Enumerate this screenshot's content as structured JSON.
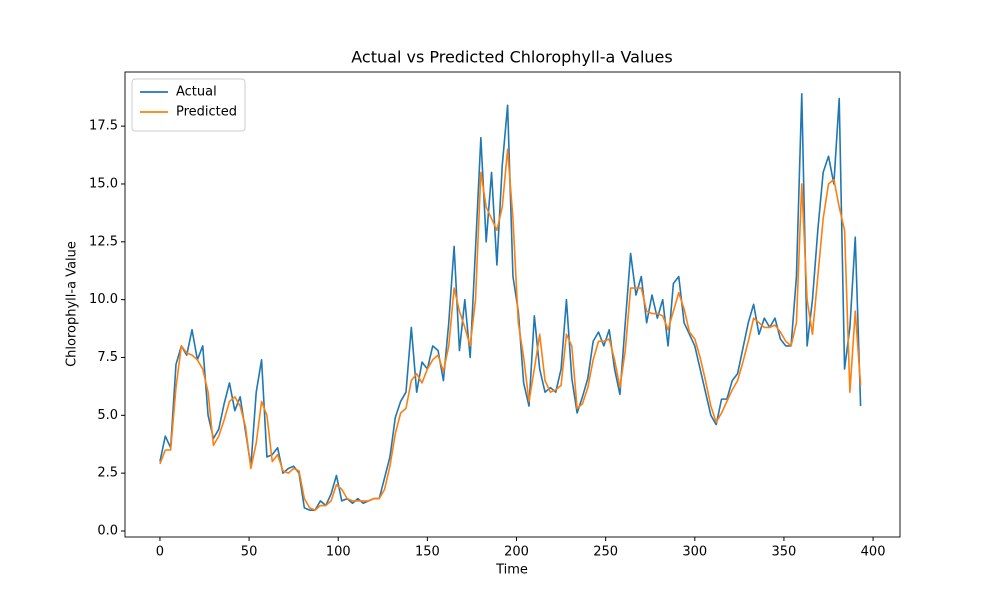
{
  "chart_data": {
    "type": "line",
    "title": "Actual vs Predicted Chlorophyll-a Values",
    "x_label": "Time",
    "y_label": "Chlorophyll-a Value",
    "x": [
      0,
      3,
      6,
      9,
      12,
      15,
      18,
      21,
      24,
      27,
      30,
      33,
      36,
      39,
      42,
      45,
      48,
      51,
      54,
      57,
      60,
      63,
      66,
      69,
      72,
      75,
      78,
      81,
      84,
      87,
      90,
      93,
      96,
      99,
      102,
      105,
      108,
      111,
      114,
      117,
      120,
      123,
      126,
      129,
      132,
      135,
      138,
      141,
      144,
      147,
      150,
      153,
      156,
      159,
      162,
      165,
      168,
      171,
      174,
      177,
      180,
      183,
      186,
      189,
      192,
      195,
      198,
      201,
      204,
      207,
      210,
      213,
      216,
      219,
      222,
      225,
      228,
      231,
      234,
      237,
      240,
      243,
      246,
      249,
      252,
      255,
      258,
      261,
      264,
      267,
      270,
      273,
      276,
      279,
      282,
      285,
      288,
      291,
      294,
      297,
      300,
      303,
      306,
      309,
      312,
      315,
      318,
      321,
      324,
      327,
      330,
      333,
      336,
      339,
      342,
      345,
      348,
      351,
      354,
      357,
      360,
      363,
      366,
      369,
      372,
      375,
      378,
      381,
      384,
      387,
      390,
      393
    ],
    "series": [
      {
        "name": "Actual",
        "color": "#1f77b4",
        "values": [
          3.0,
          4.1,
          3.6,
          7.2,
          8.0,
          7.6,
          8.7,
          7.4,
          8.0,
          5.0,
          4.0,
          4.4,
          5.5,
          6.4,
          5.2,
          5.8,
          4.3,
          2.8,
          6.0,
          7.4,
          3.2,
          3.3,
          3.6,
          2.5,
          2.7,
          2.8,
          2.5,
          1.0,
          0.9,
          0.9,
          1.3,
          1.1,
          1.6,
          2.4,
          1.3,
          1.4,
          1.2,
          1.4,
          1.2,
          1.3,
          1.4,
          1.4,
          2.3,
          3.2,
          4.9,
          5.6,
          6.0,
          8.8,
          6.0,
          7.3,
          7.0,
          8.0,
          7.8,
          6.5,
          9.0,
          12.3,
          7.8,
          10.0,
          7.5,
          12.2,
          17.0,
          12.5,
          15.5,
          11.5,
          15.8,
          18.4,
          11.0,
          9.5,
          6.4,
          5.4,
          9.3,
          7.0,
          6.0,
          6.2,
          6.0,
          7.0,
          10.0,
          6.6,
          5.1,
          5.8,
          6.6,
          8.2,
          8.6,
          8.0,
          8.7,
          7.0,
          5.9,
          9.0,
          12.0,
          10.2,
          11.0,
          9.0,
          10.2,
          9.2,
          10.0,
          8.0,
          10.7,
          11.0,
          9.0,
          8.5,
          8.0,
          7.0,
          6.0,
          5.0,
          4.6,
          5.7,
          5.7,
          6.5,
          6.8,
          7.9,
          9.0,
          9.8,
          8.5,
          9.2,
          8.8,
          9.2,
          8.3,
          8.0,
          8.0,
          11.0,
          18.9,
          8.0,
          10.0,
          13.0,
          15.5,
          16.2,
          15.0,
          18.7,
          7.0,
          8.8,
          12.7,
          5.4
        ]
      },
      {
        "name": "Predicted",
        "color": "#ff7f0e",
        "values": [
          2.9,
          3.5,
          3.5,
          6.2,
          8.0,
          7.7,
          7.6,
          7.4,
          7.0,
          6.0,
          3.7,
          4.1,
          4.8,
          5.6,
          5.8,
          5.4,
          4.5,
          2.7,
          3.8,
          5.6,
          5.0,
          3.0,
          3.3,
          2.6,
          2.5,
          2.7,
          2.6,
          1.4,
          1.0,
          0.9,
          1.1,
          1.1,
          1.3,
          2.0,
          1.8,
          1.4,
          1.3,
          1.3,
          1.3,
          1.3,
          1.4,
          1.4,
          1.8,
          2.8,
          4.2,
          5.1,
          5.3,
          6.5,
          6.8,
          6.4,
          7.0,
          7.4,
          7.6,
          6.9,
          8.0,
          10.5,
          9.5,
          8.8,
          8.0,
          10.0,
          15.5,
          14.0,
          13.5,
          13.0,
          14.0,
          16.5,
          13.5,
          9.0,
          7.5,
          5.6,
          7.0,
          8.5,
          6.5,
          6.0,
          6.1,
          6.3,
          8.5,
          8.0,
          5.3,
          5.5,
          6.2,
          7.4,
          8.2,
          8.2,
          8.3,
          7.4,
          6.2,
          7.8,
          10.5,
          10.5,
          10.5,
          9.5,
          9.4,
          9.4,
          9.3,
          8.7,
          9.5,
          10.3,
          9.6,
          8.6,
          8.3,
          7.5,
          6.5,
          5.4,
          4.7,
          5.1,
          5.6,
          6.1,
          6.5,
          7.3,
          8.2,
          9.2,
          9.0,
          8.8,
          8.8,
          8.9,
          8.6,
          8.2,
          8.0,
          9.0,
          15.0,
          10.0,
          8.5,
          11.0,
          13.5,
          15.0,
          15.2,
          14.0,
          13.0,
          6.0,
          9.5,
          6.3
        ]
      }
    ],
    "xlim": [
      -19.6,
      415.1
    ],
    "ylim": [
      -0.26,
      19.84
    ],
    "xticks": [
      0,
      50,
      100,
      150,
      200,
      250,
      300,
      350,
      400
    ],
    "yticks": [
      {
        "value": 0,
        "label": "0.0"
      },
      2.5,
      {
        "value": 5,
        "label": "5.0"
      },
      7.5,
      {
        "value": 10,
        "label": "10.0"
      },
      12.5,
      {
        "value": 15,
        "label": "15.0"
      },
      17.5
    ],
    "grid": false,
    "legend": "upper left"
  }
}
